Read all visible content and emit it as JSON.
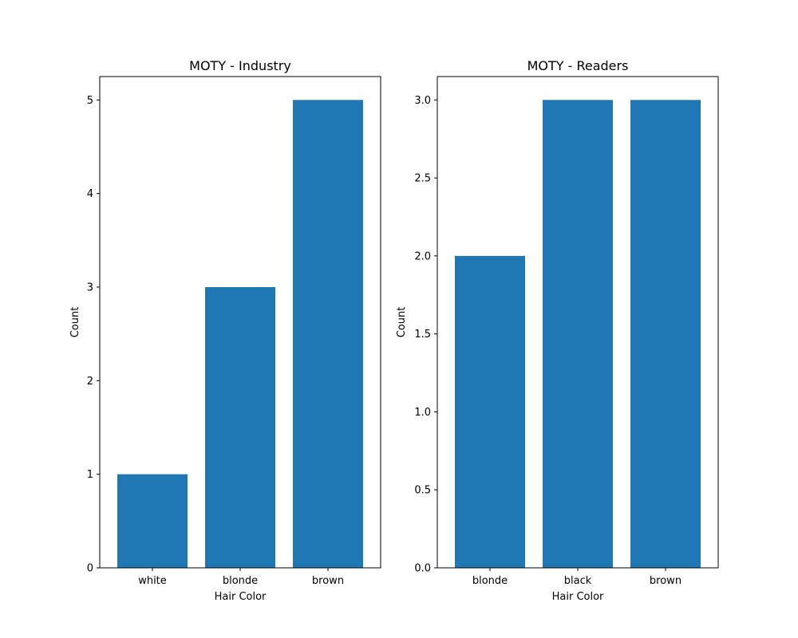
{
  "chart_data": [
    {
      "type": "bar",
      "title": "MOTY - Industry",
      "xlabel": "Hair Color",
      "ylabel": "Count",
      "categories": [
        "white",
        "blonde",
        "brown"
      ],
      "values": [
        1,
        3,
        5
      ],
      "ylim": [
        0,
        5.25
      ],
      "yticks": [
        0,
        1,
        2,
        3,
        4,
        5
      ],
      "ytick_labels": [
        "0",
        "1",
        "2",
        "3",
        "4",
        "5"
      ],
      "bar_color": "#1f77b4",
      "grid": false
    },
    {
      "type": "bar",
      "title": "MOTY - Readers",
      "xlabel": "Hair Color",
      "ylabel": "Count",
      "categories": [
        "blonde",
        "black",
        "brown"
      ],
      "values": [
        2,
        3,
        3
      ],
      "ylim": [
        0,
        3.15
      ],
      "yticks": [
        0,
        0.5,
        1,
        1.5,
        2,
        2.5,
        3
      ],
      "ytick_labels": [
        "0.0",
        "0.5",
        "1.0",
        "1.5",
        "2.0",
        "2.5",
        "3.0"
      ],
      "bar_color": "#1f77b4",
      "grid": false
    }
  ]
}
